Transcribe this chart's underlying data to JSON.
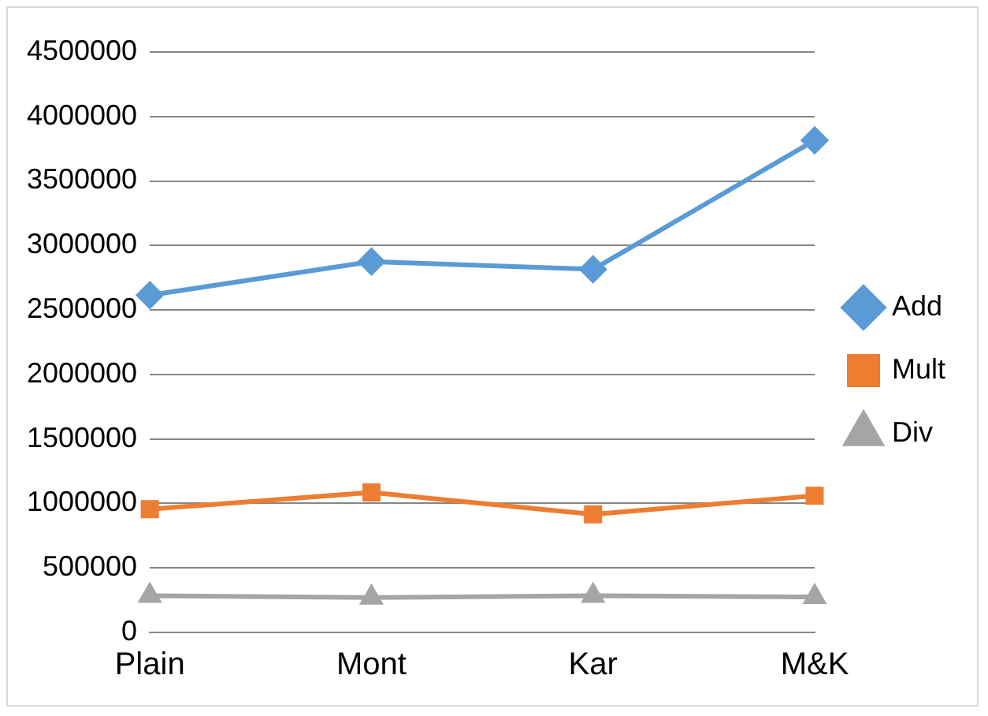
{
  "chart_data": {
    "type": "line",
    "categories": [
      "Plain",
      "Mont",
      "Kar",
      "M&K"
    ],
    "series": [
      {
        "name": "Add",
        "color": "#5b9bd5",
        "marker": "diamond",
        "values": [
          2615000,
          2875000,
          2815000,
          3815000
        ]
      },
      {
        "name": "Mult",
        "color": "#ed7d31",
        "marker": "square",
        "values": [
          955000,
          1085000,
          915000,
          1060000
        ]
      },
      {
        "name": "Div",
        "color": "#a5a5a5",
        "marker": "triangle",
        "values": [
          285000,
          270000,
          285000,
          275000
        ]
      }
    ],
    "ylim": [
      0,
      4500000
    ],
    "yticks": [
      0,
      500000,
      1000000,
      1500000,
      2000000,
      2500000,
      3000000,
      3500000,
      4000000,
      4500000
    ],
    "grid": "y",
    "legend": "right",
    "line_style": "solid"
  }
}
